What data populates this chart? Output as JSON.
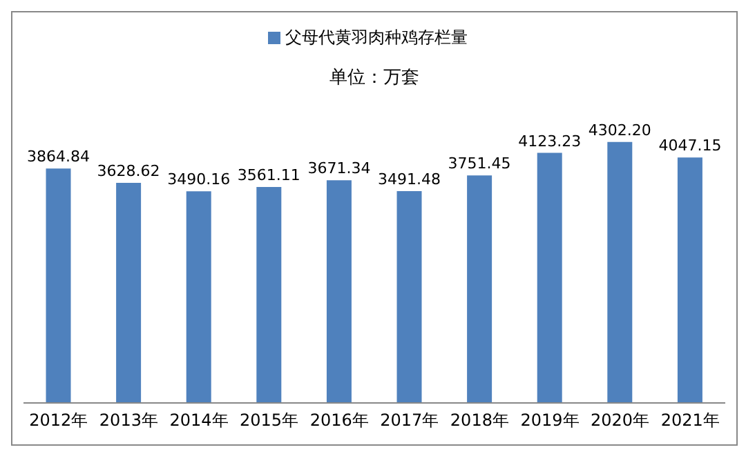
{
  "chart_data": {
    "type": "bar",
    "subtitle": "单位：万套",
    "categories": [
      "2012年",
      "2013年",
      "2014年",
      "2015年",
      "2016年",
      "2017年",
      "2018年",
      "2019年",
      "2020年",
      "2021年"
    ],
    "series": [
      {
        "name": "父母代黄羽肉种鸡存栏量",
        "color": "#4f81bd",
        "values": [
          3864.84,
          3628.62,
          3490.16,
          3561.11,
          3671.34,
          3491.48,
          3751.45,
          4123.23,
          4302.2,
          4047.15
        ],
        "value_labels": [
          "3864.84",
          "3628.62",
          "3490.16",
          "3561.11",
          "3671.34",
          "3491.48",
          "3751.45",
          "4123.23",
          "4302.20",
          "4047.15"
        ]
      }
    ],
    "legend": "top"
  }
}
